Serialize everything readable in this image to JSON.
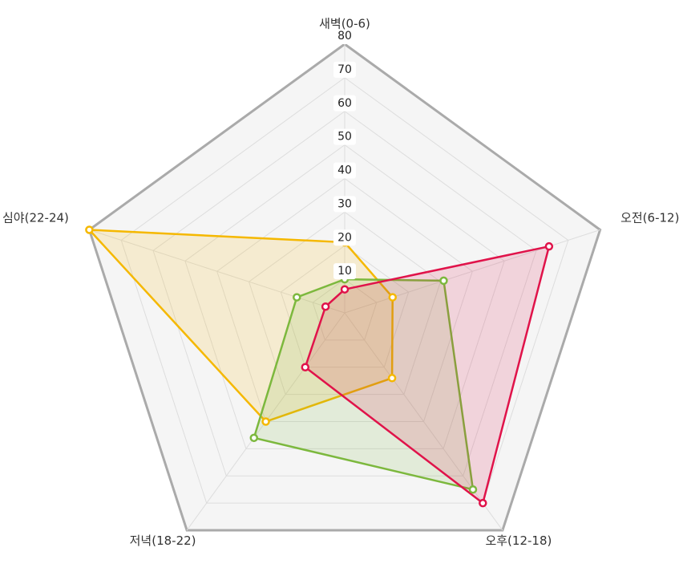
{
  "chart_data": {
    "type": "radar",
    "categories": [
      "새벽(0-6)",
      "오전(6-12)",
      "오후(12-18)",
      "저녁(18-22)",
      "심야(22-24)"
    ],
    "ylim": [
      0,
      80
    ],
    "yticks": [
      10,
      20,
      30,
      40,
      50,
      60,
      70,
      80
    ],
    "series": [
      {
        "color": "#f5b800",
        "values": [
          21,
          15,
          24,
          40,
          80
        ]
      },
      {
        "color": "#7cb83d",
        "values": [
          10,
          31,
          65,
          46,
          15
        ]
      },
      {
        "color": "#e0134a",
        "values": [
          7,
          64,
          70,
          20,
          6
        ]
      }
    ]
  }
}
